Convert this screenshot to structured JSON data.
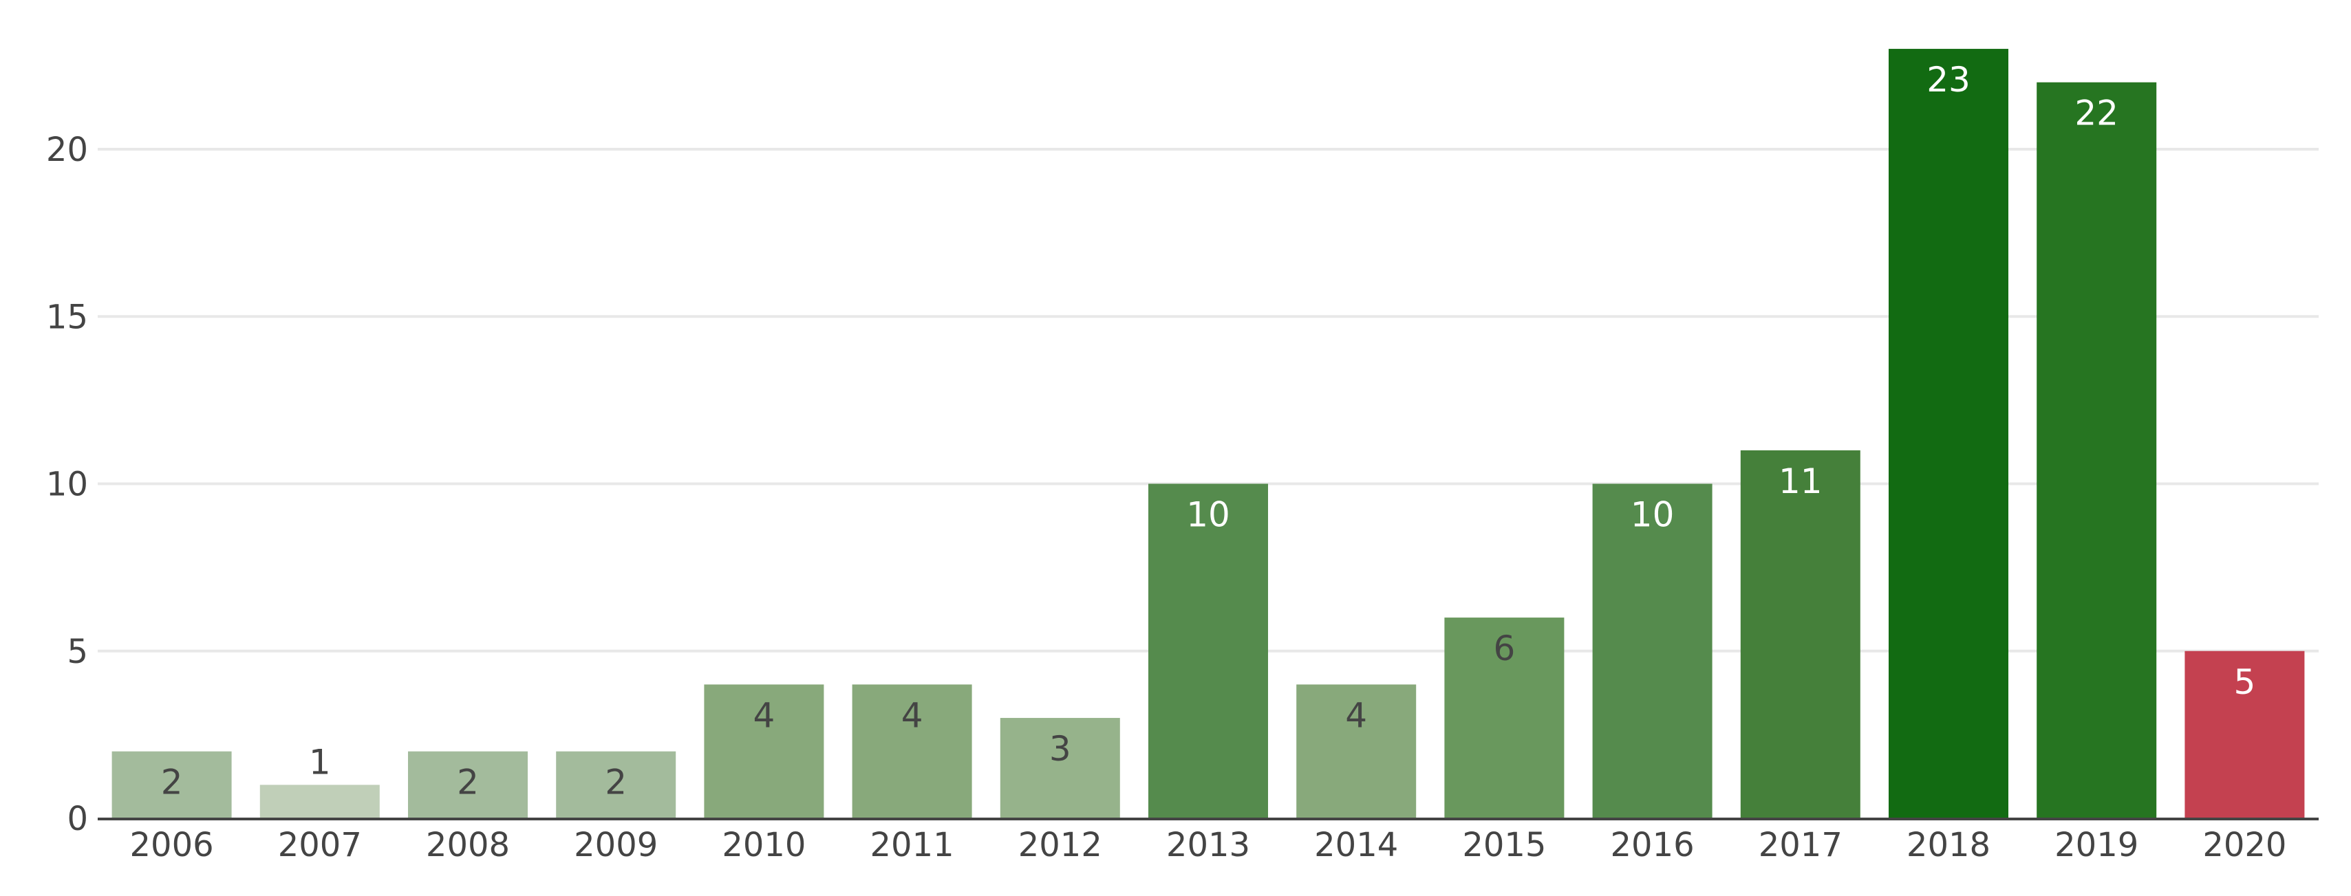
{
  "chart_data": {
    "type": "bar",
    "categories": [
      "2006",
      "2007",
      "2008",
      "2009",
      "2010",
      "2011",
      "2012",
      "2013",
      "2014",
      "2015",
      "2016",
      "2017",
      "2018",
      "2019",
      "2020"
    ],
    "values": [
      2,
      1,
      2,
      2,
      4,
      4,
      3,
      10,
      4,
      6,
      10,
      11,
      23,
      22,
      5
    ],
    "bar_colors": [
      "#a3bb9c",
      "#c0cfb8",
      "#a3bb9c",
      "#a3bb9c",
      "#88a97b",
      "#88a97b",
      "#96b38b",
      "#558b4d",
      "#88a97b",
      "#69985d",
      "#558b4d",
      "#45803a",
      "#126b12",
      "#267521",
      "#c44150"
    ],
    "value_label_colors": [
      "#444444",
      "#444444",
      "#444444",
      "#444444",
      "#444444",
      "#444444",
      "#444444",
      "#ffffff",
      "#444444",
      "#444444",
      "#ffffff",
      "#ffffff",
      "#ffffff",
      "#ffffff",
      "#ffffff"
    ],
    "y_ticks": [
      0,
      5,
      10,
      15,
      20
    ],
    "ylim": [
      0,
      23
    ],
    "grid": true,
    "title": "",
    "xlabel": "",
    "ylabel": ""
  },
  "colors": {
    "grid": "#e8e8e8",
    "axis": "#444444",
    "text": "#444444"
  }
}
